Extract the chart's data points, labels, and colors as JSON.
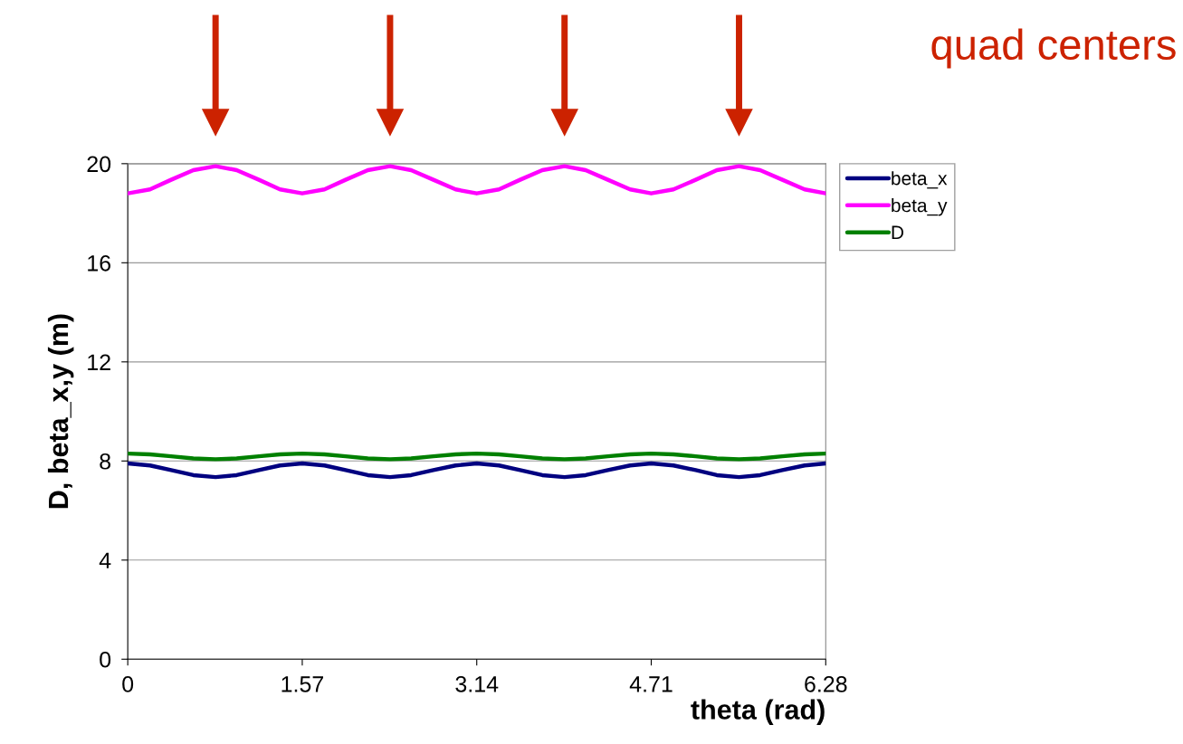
{
  "chart_data": {
    "type": "line",
    "xlabel": "theta (rad)",
    "ylabel": "D, beta_x,y (m)",
    "x": [
      0,
      0.2,
      0.39,
      0.59,
      0.79,
      0.98,
      1.18,
      1.37,
      1.57,
      1.77,
      1.96,
      2.16,
      2.36,
      2.55,
      2.75,
      2.95,
      3.14,
      3.34,
      3.53,
      3.73,
      3.93,
      4.12,
      4.32,
      4.52,
      4.71,
      4.91,
      5.11,
      5.3,
      5.5,
      5.69,
      5.89,
      6.09,
      6.28
    ],
    "series": [
      {
        "name": "beta_x",
        "color": "#000080",
        "values": [
          7.9,
          7.82,
          7.63,
          7.43,
          7.35,
          7.43,
          7.63,
          7.82,
          7.9,
          7.82,
          7.63,
          7.43,
          7.35,
          7.43,
          7.63,
          7.82,
          7.9,
          7.82,
          7.63,
          7.43,
          7.35,
          7.43,
          7.63,
          7.82,
          7.9,
          7.82,
          7.63,
          7.43,
          7.35,
          7.43,
          7.63,
          7.82,
          7.9
        ]
      },
      {
        "name": "beta_y",
        "color": "#ff00ff",
        "values": [
          18.8,
          18.96,
          19.35,
          19.74,
          19.9,
          19.74,
          19.35,
          18.96,
          18.8,
          18.96,
          19.35,
          19.74,
          19.9,
          19.74,
          19.35,
          18.96,
          18.8,
          18.96,
          19.35,
          19.74,
          19.9,
          19.74,
          19.35,
          18.96,
          18.8,
          18.96,
          19.35,
          19.74,
          19.9,
          19.74,
          19.35,
          18.96,
          18.8
        ]
      },
      {
        "name": "D",
        "color": "#008000",
        "values": [
          8.3,
          8.27,
          8.19,
          8.1,
          8.07,
          8.1,
          8.19,
          8.27,
          8.3,
          8.27,
          8.19,
          8.1,
          8.07,
          8.1,
          8.19,
          8.27,
          8.3,
          8.27,
          8.19,
          8.1,
          8.07,
          8.1,
          8.19,
          8.27,
          8.3,
          8.27,
          8.19,
          8.1,
          8.07,
          8.1,
          8.19,
          8.27,
          8.3
        ]
      }
    ],
    "xlim": [
      0,
      6.28
    ],
    "xticks": [
      0,
      1.57,
      3.14,
      4.71,
      6.28
    ],
    "ylim": [
      0,
      20
    ],
    "yticks": [
      0,
      4,
      8,
      12,
      16,
      20
    ],
    "grid": "y",
    "legend": "top right",
    "marker": "none",
    "line_style": "solid",
    "annotations": [
      "quad centers"
    ]
  }
}
